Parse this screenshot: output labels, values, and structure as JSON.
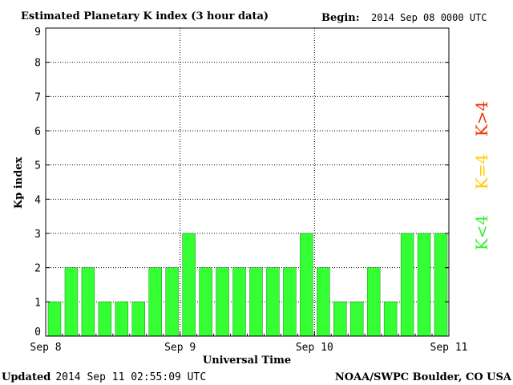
{
  "header": {
    "title": "Estimated Planetary K index (3 hour data)",
    "begin_label": "Begin:",
    "begin_value": "2014 Sep 08 0000 UTC"
  },
  "footer": {
    "updated_label": "Updated",
    "updated_value": "2014 Sep 11 02:55:09 UTC",
    "credit": "NOAA/SWPC Boulder, CO USA"
  },
  "legend": {
    "items": [
      {
        "label": "K<4",
        "color": "#33ee33"
      },
      {
        "label": "K=4",
        "color": "#ffcc00"
      },
      {
        "label": "K>4",
        "color": "#ee3300"
      }
    ]
  },
  "chart_data": {
    "type": "bar",
    "title": "Estimated Planetary K index (3 hour data)",
    "xlabel": "Universal Time",
    "ylabel": "Kp index",
    "ylim": [
      0,
      9
    ],
    "yticks": [
      "0",
      "1",
      "2",
      "3",
      "4",
      "5",
      "6",
      "7",
      "8",
      "9"
    ],
    "xticks": [
      "Sep 8",
      "Sep 9",
      "Sep 10",
      "Sep 11"
    ],
    "grid": true,
    "bar_color": "#33ff33",
    "bar_border": "#228822",
    "values": [
      1,
      2,
      2,
      1,
      1,
      1,
      2,
      2,
      3,
      2,
      2,
      2,
      2,
      2,
      2,
      3,
      2,
      1,
      1,
      2,
      1,
      3,
      3,
      3
    ]
  }
}
